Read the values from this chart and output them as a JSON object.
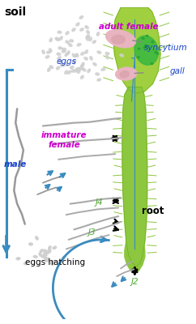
{
  "bg_color": "#ffffff",
  "root_color": "#8dc63f",
  "gall_color": "#a0d040",
  "syncytium_color": "#3db840",
  "female_body_color": "#e8b4c0",
  "nematode_color": "#888888",
  "egg_color": "#cccccc",
  "blue_color": "#3a8bbf",
  "label_soil": "soil",
  "label_eggs": "eggs",
  "label_adult_female": "adult female",
  "label_syncytium": "syncytium",
  "label_gall": "gall",
  "label_immature_female": "immature\nfemale",
  "label_male": "male",
  "label_J4": "J4",
  "label_J3": "J3",
  "label_J2": "J2",
  "label_root": "root",
  "label_eggs_hatching": "eggs hatching",
  "soil_color": "#000000",
  "male_color": "#1a44cc",
  "eggs_label_color": "#1a44cc",
  "immature_female_label_color": "#cc00cc",
  "syncytium_label_color": "#1a44cc",
  "gall_label_color": "#1a44cc",
  "adult_female_label_color": "#cc00cc",
  "J_color": "#4aaa30",
  "root_label_color": "#000000",
  "eggs_hatching_color": "#000000"
}
